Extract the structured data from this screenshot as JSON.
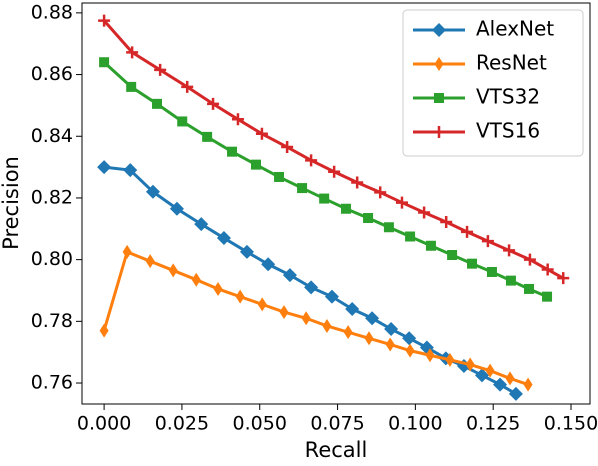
{
  "chart_data": {
    "type": "line",
    "xlabel": "Recall",
    "ylabel": "Precision",
    "xlim": [
      -0.0071,
      0.1561
    ],
    "ylim": [
      0.7532,
      0.8832
    ],
    "xticks": [
      {
        "value": 0,
        "label": "0.000"
      },
      {
        "value": 0.025,
        "label": "0.025"
      },
      {
        "value": 0.05,
        "label": "0.050"
      },
      {
        "value": 0.075,
        "label": "0.075"
      },
      {
        "value": 0.1,
        "label": "0.100"
      },
      {
        "value": 0.125,
        "label": "0.125"
      },
      {
        "value": 0.15,
        "label": "0.150"
      }
    ],
    "yticks": [
      0.76,
      0.78,
      {
        "value": 0.8,
        "label": "0.80"
      },
      0.82,
      0.84,
      0.86,
      0.88
    ],
    "legend": "upper right",
    "series": [
      {
        "name": "AlexNet",
        "color": "#1f77b4",
        "marker": "diamond",
        "x": [
          0,
          0.0084,
          0.0157,
          0.0234,
          0.0312,
          0.0385,
          0.0459,
          0.0527,
          0.0597,
          0.0665,
          0.0732,
          0.0797,
          0.0861,
          0.0922,
          0.098,
          0.1037,
          0.1098,
          0.1156,
          0.1214,
          0.1272,
          0.1323
        ],
        "values": [
          0.83,
          0.829,
          0.822,
          0.8165,
          0.8115,
          0.807,
          0.8025,
          0.7985,
          0.795,
          0.791,
          0.788,
          0.784,
          0.781,
          0.7775,
          0.7745,
          0.7715,
          0.768,
          0.7655,
          0.7625,
          0.7595,
          0.7565
        ]
      },
      {
        "name": "ResNet",
        "color": "#ff7f0e",
        "marker": "thin_diamond",
        "x": [
          0,
          0.0074,
          0.0148,
          0.0222,
          0.0296,
          0.0366,
          0.0437,
          0.0508,
          0.0578,
          0.0649,
          0.0716,
          0.0784,
          0.0851,
          0.0919,
          0.0983,
          0.1047,
          0.1111,
          0.1176,
          0.124,
          0.1304,
          0.1362
        ],
        "values": [
          0.777,
          0.8025,
          0.7995,
          0.7965,
          0.7935,
          0.7905,
          0.788,
          0.7855,
          0.783,
          0.781,
          0.7785,
          0.7765,
          0.7745,
          0.7725,
          0.7705,
          0.769,
          0.7675,
          0.766,
          0.764,
          0.7615,
          0.7595
        ]
      },
      {
        "name": "VTS32",
        "color": "#2ca02c",
        "marker": "square",
        "x": [
          0,
          0.0087,
          0.017,
          0.0251,
          0.0331,
          0.0411,
          0.0488,
          0.0562,
          0.0636,
          0.0707,
          0.0777,
          0.0848,
          0.0915,
          0.0983,
          0.105,
          0.1118,
          0.1182,
          0.1246,
          0.1307,
          0.1365,
          0.1423
        ],
        "values": [
          0.864,
          0.856,
          0.8505,
          0.8448,
          0.8398,
          0.835,
          0.8308,
          0.8268,
          0.8232,
          0.8198,
          0.8165,
          0.8135,
          0.8105,
          0.8075,
          0.8045,
          0.8015,
          0.7987,
          0.796,
          0.7932,
          0.7905,
          0.788
        ]
      },
      {
        "name": "VTS16",
        "color": "#d62728",
        "marker": "plus",
        "x": [
          0,
          0.009,
          0.018,
          0.0267,
          0.035,
          0.043,
          0.0507,
          0.0588,
          0.0665,
          0.0739,
          0.0813,
          0.0887,
          0.0957,
          0.1028,
          0.1099,
          0.1166,
          0.1233,
          0.1301,
          0.1368,
          0.1425,
          0.1475
        ],
        "values": [
          0.8775,
          0.8672,
          0.8615,
          0.856,
          0.8505,
          0.8455,
          0.8408,
          0.8365,
          0.8322,
          0.8285,
          0.825,
          0.8218,
          0.8185,
          0.8153,
          0.8122,
          0.809,
          0.806,
          0.803,
          0.8,
          0.7968,
          0.794
        ]
      }
    ]
  }
}
